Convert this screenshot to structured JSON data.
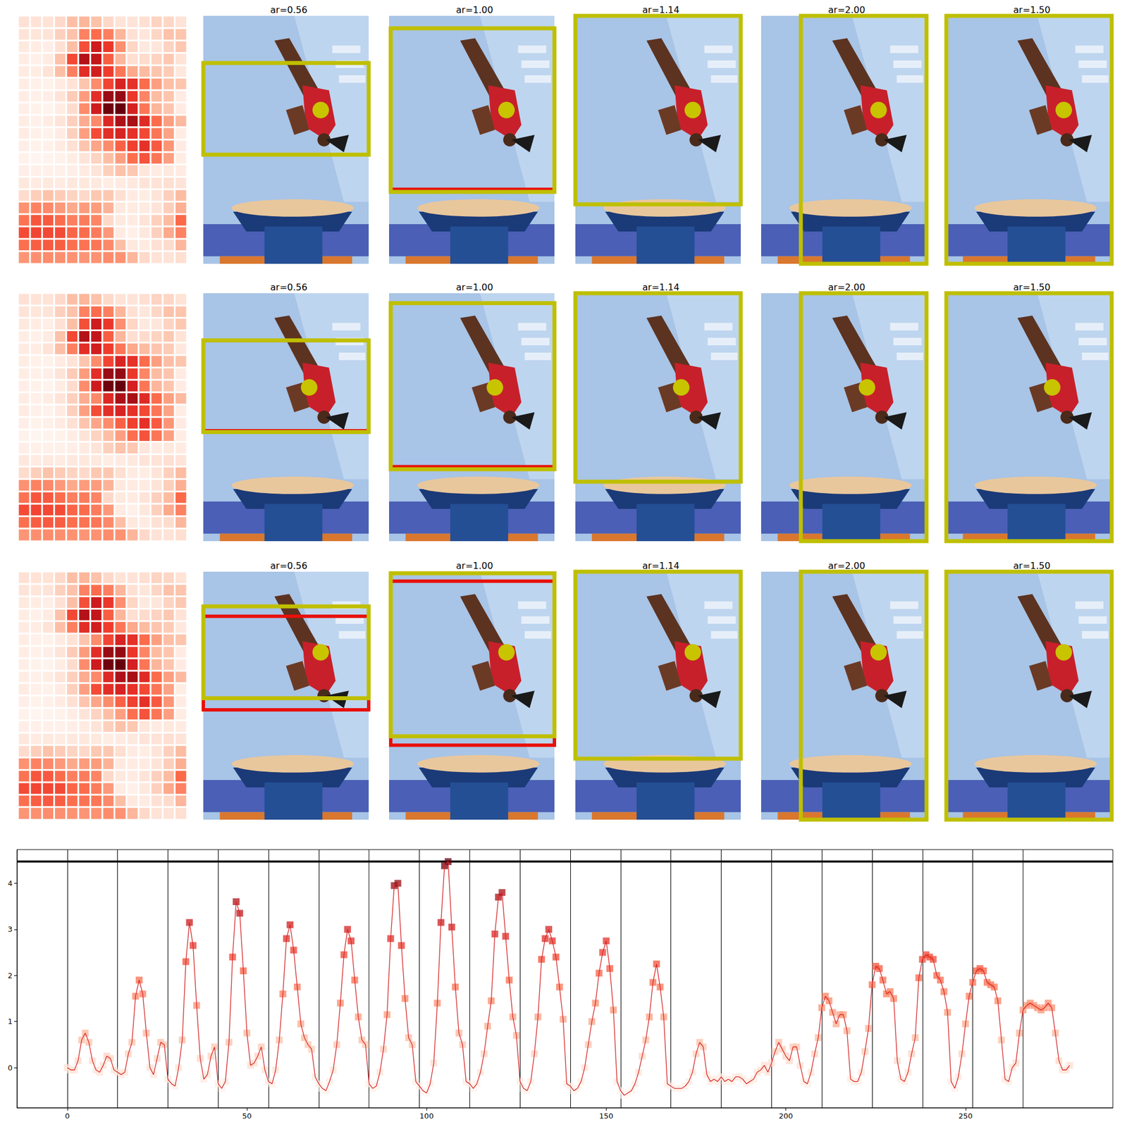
{
  "chart_data": {
    "type": "line",
    "color": "#d62728",
    "marker": "square",
    "grid": false,
    "row_length": 14,
    "max_line": 4.47,
    "xlim": [
      -14,
      291
    ],
    "ylim": [
      -0.87,
      4.73
    ],
    "xticks": [
      0,
      50,
      100,
      150,
      200,
      250
    ],
    "yticks": [
      0,
      1,
      2,
      3,
      4
    ],
    "x": [
      0,
      1,
      2,
      3,
      4,
      5,
      6,
      7,
      8,
      9,
      10,
      11,
      12,
      13,
      14,
      15,
      16,
      17,
      18,
      19,
      20,
      21,
      22,
      23,
      24,
      25,
      26,
      27,
      28,
      29,
      30,
      31,
      32,
      33,
      34,
      35,
      36,
      37,
      38,
      39,
      40,
      41,
      42,
      43,
      44,
      45,
      46,
      47,
      48,
      49,
      50,
      51,
      52,
      53,
      54,
      55,
      56,
      57,
      58,
      59,
      60,
      61,
      62,
      63,
      64,
      65,
      66,
      67,
      68,
      69,
      70,
      71,
      72,
      73,
      74,
      75,
      76,
      77,
      78,
      79,
      80,
      81,
      82,
      83,
      84,
      85,
      86,
      87,
      88,
      89,
      90,
      91,
      92,
      93,
      94,
      95,
      96,
      97,
      98,
      99,
      100,
      101,
      102,
      103,
      104,
      105,
      106,
      107,
      108,
      109,
      110,
      111,
      112,
      113,
      114,
      115,
      116,
      117,
      118,
      119,
      120,
      121,
      122,
      123,
      124,
      125,
      126,
      127,
      128,
      129,
      130,
      131,
      132,
      133,
      134,
      135,
      136,
      137,
      138,
      139,
      140,
      141,
      142,
      143,
      144,
      145,
      146,
      147,
      148,
      149,
      150,
      151,
      152,
      153,
      154,
      155,
      156,
      157,
      158,
      159,
      160,
      161,
      162,
      163,
      164,
      165,
      166,
      167,
      168,
      169,
      170,
      171,
      172,
      173,
      174,
      175,
      176,
      177,
      178,
      179,
      180,
      181,
      182,
      183,
      184,
      185,
      186,
      187,
      188,
      189,
      190,
      191,
      192,
      193,
      194,
      195,
      196,
      197,
      198,
      199,
      200,
      201,
      202,
      203,
      204,
      205,
      206,
      207,
      208,
      209,
      210,
      211,
      212,
      213,
      214,
      215,
      216,
      217,
      218,
      219,
      220,
      221,
      222,
      223,
      224,
      225,
      226,
      227,
      228,
      229,
      230,
      231,
      232,
      233,
      234,
      235,
      236,
      237,
      238,
      239,
      240,
      241,
      242,
      243,
      244,
      245,
      246,
      247,
      248,
      249,
      250,
      251,
      252,
      253,
      254,
      255,
      256,
      257,
      258,
      259,
      260,
      261,
      262,
      263,
      264,
      265,
      266,
      267,
      268,
      269,
      270,
      271,
      272,
      273,
      274,
      275,
      276,
      277,
      278,
      279
    ],
    "values": [
      0.0,
      -0.05,
      -0.05,
      0.15,
      0.6,
      0.75,
      0.55,
      0.15,
      -0.05,
      -0.1,
      0.05,
      0.25,
      0.2,
      -0.05,
      -0.1,
      -0.15,
      -0.1,
      0.3,
      0.55,
      1.55,
      1.9,
      1.6,
      0.75,
      0.0,
      -0.15,
      0.2,
      0.55,
      0.5,
      -0.25,
      -0.35,
      -0.4,
      0.0,
      0.6,
      2.3,
      3.15,
      2.65,
      1.35,
      0.2,
      -0.25,
      -0.15,
      0.25,
      0.45,
      -0.35,
      -0.45,
      -0.3,
      0.55,
      2.4,
      3.6,
      3.35,
      2.1,
      0.75,
      0.05,
      0.1,
      0.25,
      0.45,
      -0.05,
      -0.3,
      -0.35,
      -0.05,
      0.6,
      1.6,
      2.8,
      3.1,
      2.55,
      1.75,
      0.95,
      0.65,
      0.5,
      0.4,
      -0.2,
      -0.35,
      -0.45,
      -0.5,
      -0.3,
      -0.05,
      0.5,
      1.4,
      2.45,
      3.0,
      2.75,
      1.9,
      1.1,
      0.6,
      0.5,
      -0.35,
      -0.45,
      -0.4,
      -0.1,
      0.4,
      1.15,
      2.8,
      3.95,
      4.0,
      2.65,
      1.5,
      0.65,
      0.5,
      -0.3,
      -0.4,
      -0.5,
      -0.55,
      -0.35,
      0.1,
      1.4,
      3.15,
      4.38,
      4.47,
      3.05,
      1.75,
      0.75,
      0.5,
      -0.3,
      -0.35,
      -0.45,
      -0.35,
      -0.1,
      0.3,
      0.9,
      1.45,
      2.9,
      3.7,
      3.8,
      2.85,
      1.9,
      1.1,
      0.7,
      -0.3,
      -0.45,
      -0.5,
      -0.3,
      0.3,
      1.1,
      2.35,
      2.8,
      3.0,
      2.75,
      2.4,
      1.75,
      1.05,
      -0.35,
      -0.4,
      -0.5,
      -0.45,
      -0.3,
      0.0,
      0.5,
      1.0,
      1.4,
      2.05,
      2.5,
      2.75,
      2.15,
      1.25,
      -0.3,
      -0.5,
      -0.6,
      -0.55,
      -0.5,
      -0.35,
      -0.1,
      0.25,
      0.6,
      1.1,
      1.85,
      2.25,
      1.75,
      1.1,
      -0.35,
      -0.4,
      -0.45,
      -0.45,
      -0.45,
      -0.4,
      -0.3,
      -0.1,
      0.3,
      0.55,
      0.45,
      -0.15,
      -0.3,
      -0.25,
      -0.3,
      -0.2,
      -0.3,
      -0.25,
      -0.3,
      -0.2,
      -0.2,
      -0.25,
      -0.35,
      -0.3,
      -0.25,
      -0.1,
      -0.05,
      0.05,
      -0.1,
      0.1,
      0.35,
      0.55,
      0.4,
      0.25,
      0.15,
      0.45,
      0.45,
      0.05,
      -0.3,
      -0.35,
      -0.1,
      0.3,
      0.65,
      1.3,
      1.55,
      1.45,
      1.2,
      0.95,
      1.15,
      1.15,
      0.8,
      -0.25,
      -0.3,
      -0.3,
      -0.1,
      0.35,
      0.85,
      1.8,
      2.2,
      2.15,
      1.9,
      1.6,
      1.65,
      1.5,
      0.15,
      -0.25,
      -0.3,
      -0.1,
      0.3,
      0.65,
      1.95,
      2.35,
      2.45,
      2.4,
      2.35,
      2.0,
      1.9,
      1.65,
      1.2,
      -0.3,
      -0.45,
      -0.2,
      0.3,
      0.95,
      1.55,
      1.85,
      2.1,
      2.15,
      2.1,
      1.85,
      1.8,
      1.75,
      1.45,
      0.6,
      -0.25,
      -0.3,
      0.0,
      0.1,
      0.75,
      1.25,
      1.35,
      1.4,
      1.35,
      1.3,
      1.25,
      1.3,
      1.4,
      1.3,
      0.75,
      0.15,
      -0.05,
      -0.05,
      0.05
    ]
  },
  "figure": {
    "rows": [
      {
        "point": [
          0.71,
          0.38
        ],
        "panels": [
          {
            "title": "ar=0.56",
            "box": [
              0,
              0.19,
              1,
              0.56
            ]
          },
          {
            "title": "ar=1.00",
            "box": [
              0.01,
              0.05,
              1,
              0.71
            ],
            "red_box": [
              0.01,
              0.05,
              1,
              0.7
            ]
          },
          {
            "title": "ar=1.14",
            "box": [
              0,
              0,
              1,
              0.76
            ]
          },
          {
            "title": "ar=2.00",
            "box": [
              0.24,
              0,
              1,
              1
            ]
          },
          {
            "title": "ar=1.50",
            "box": [
              0,
              0,
              1,
              1
            ]
          }
        ]
      },
      {
        "point": [
          0.64,
          0.38
        ],
        "panels": [
          {
            "title": "ar=0.56",
            "box": [
              0,
              0.19,
              1,
              0.56
            ],
            "red_box": [
              0,
              0.19,
              1,
              0.555
            ]
          },
          {
            "title": "ar=1.00",
            "box": [
              0.01,
              0.04,
              1,
              0.71
            ],
            "red_box": [
              0.01,
              0.04,
              1,
              0.7
            ]
          },
          {
            "title": "ar=1.14",
            "box": [
              0,
              0,
              1,
              0.76
            ]
          },
          {
            "title": "ar=2.00",
            "box": [
              0.24,
              0,
              1,
              1
            ]
          },
          {
            "title": "ar=1.50",
            "box": [
              0,
              0,
              1,
              1
            ]
          }
        ]
      },
      {
        "point": [
          0.71,
          0.325
        ],
        "panels": [
          {
            "title": "ar=0.56",
            "box": [
              0,
              0.14,
              1,
              0.51
            ],
            "red_box": [
              0,
              0.18,
              1,
              0.557
            ]
          },
          {
            "title": "ar=1.00",
            "box": [
              0.01,
              0.006,
              1,
              0.664
            ],
            "red_box": [
              0.01,
              0.038,
              1,
              0.7
            ]
          },
          {
            "title": "ar=1.14",
            "box": [
              0,
              0,
              1,
              0.754
            ]
          },
          {
            "title": "ar=2.00",
            "box": [
              0.24,
              0,
              1,
              1
            ]
          },
          {
            "title": "ar=1.50",
            "box": [
              0,
              0,
              1,
              1
            ]
          }
        ]
      }
    ]
  }
}
